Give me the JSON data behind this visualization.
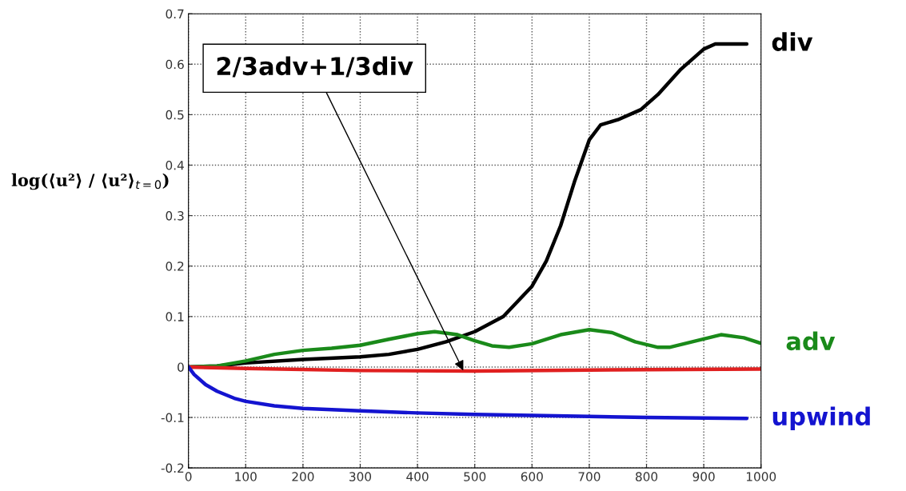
{
  "chart_data": {
    "type": "line",
    "ylabel": "log(⟨u²⟩ / ⟨u²⟩$_{t=0}$)",
    "xlim": [
      0,
      1000
    ],
    "xticks": [
      0,
      100,
      200,
      300,
      400,
      500,
      600,
      700,
      800,
      900,
      1000
    ],
    "ylim": [
      -0.2,
      0.7
    ],
    "yticks": [
      -0.2,
      -0.1,
      0,
      0.1,
      0.2,
      0.3,
      0.4,
      0.5,
      0.6,
      0.7
    ],
    "grid": true,
    "line_style": "solid",
    "marker": "none",
    "annotations": [
      {
        "text": "2/3adv+1/3div",
        "x": 480,
        "y": -0.007
      }
    ],
    "series": [
      {
        "name": "div",
        "color": "#000000",
        "x": [
          0,
          50,
          100,
          200,
          300,
          350,
          400,
          450,
          500,
          550,
          600,
          625,
          650,
          675,
          700,
          720,
          750,
          790,
          820,
          860,
          900,
          920,
          975
        ],
        "values": [
          0,
          0.002,
          0.008,
          0.015,
          0.02,
          0.025,
          0.035,
          0.05,
          0.07,
          0.1,
          0.16,
          0.21,
          0.28,
          0.37,
          0.45,
          0.48,
          0.49,
          0.51,
          0.54,
          0.59,
          0.63,
          0.64,
          0.64
        ]
      },
      {
        "name": "adv",
        "color": "#1a8a1a",
        "x": [
          0,
          50,
          100,
          150,
          200,
          250,
          300,
          350,
          400,
          430,
          470,
          500,
          530,
          560,
          600,
          650,
          700,
          740,
          780,
          820,
          840,
          880,
          930,
          970,
          1000
        ],
        "values": [
          0,
          0.002,
          0.012,
          0.025,
          0.033,
          0.037,
          0.043,
          0.055,
          0.066,
          0.07,
          0.064,
          0.052,
          0.042,
          0.039,
          0.046,
          0.064,
          0.074,
          0.068,
          0.05,
          0.039,
          0.039,
          0.05,
          0.064,
          0.058,
          0.047
        ]
      },
      {
        "color": "#e02020",
        "x": [
          0,
          100,
          300,
          500,
          700,
          1000
        ],
        "values": [
          0,
          -0.003,
          -0.007,
          -0.008,
          -0.006,
          -0.004
        ]
      },
      {
        "name": "upwind",
        "color": "#1414d0",
        "x": [
          0,
          10,
          30,
          50,
          80,
          100,
          150,
          200,
          300,
          400,
          500,
          600,
          700,
          800,
          900,
          975
        ],
        "values": [
          0,
          -0.015,
          -0.035,
          -0.048,
          -0.062,
          -0.068,
          -0.077,
          -0.082,
          -0.087,
          -0.091,
          -0.094,
          -0.096,
          -0.098,
          -0.1,
          -0.101,
          -0.102
        ]
      }
    ]
  }
}
